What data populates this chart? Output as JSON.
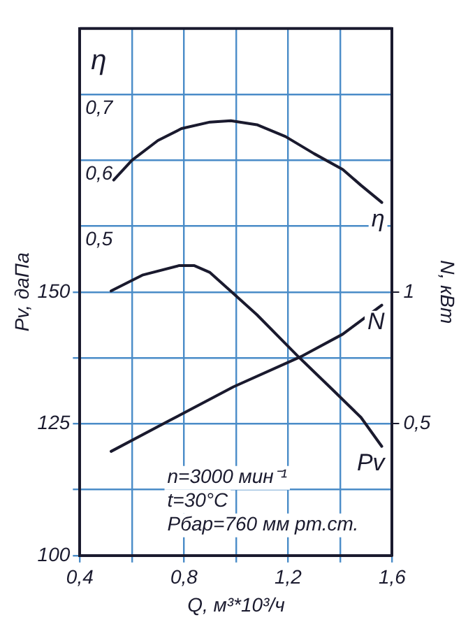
{
  "chart_data": {
    "type": "line",
    "xlabel": "Q, м³*10³/ч",
    "ylabel": "Pv, даПа",
    "y2label": "N, кВт",
    "y3label": "η",
    "xlim": [
      0.4,
      1.6
    ],
    "xticks": [
      {
        "value": 0.4,
        "label": "0,4"
      },
      {
        "value": 0.6,
        "label": null
      },
      {
        "value": 0.8,
        "label": "0,8"
      },
      {
        "value": 1.0,
        "label": null
      },
      {
        "value": 1.2,
        "label": "1,2"
      },
      {
        "value": 1.4,
        "label": null
      },
      {
        "value": 1.6,
        "label": "1,6"
      }
    ],
    "ylim": [
      100,
      200
    ],
    "yticks": [
      100,
      {
        "value": 112.5,
        "label": null
      },
      125,
      {
        "value": 137.5,
        "label": null
      },
      150
    ],
    "y2lim": [
      0,
      2
    ],
    "y2ticks": [
      {
        "value": 0.5,
        "label": "0,5"
      },
      1
    ],
    "y3lim": [
      0,
      0.8
    ],
    "y3ticks": [
      {
        "value": 0.5,
        "label": "0,5"
      },
      {
        "value": 0.6,
        "label": "0,6"
      },
      {
        "value": 0.7,
        "label": "0,7"
      }
    ],
    "grid": true,
    "legend": false,
    "marker": "none",
    "line_style": "solid",
    "series": [
      {
        "name": "η",
        "color": "#1a1a2e",
        "axis": "y3",
        "x": [
          0.53,
          0.6,
          0.7,
          0.79,
          0.9,
          0.98,
          1.08,
          1.19,
          1.3,
          1.41,
          1.48,
          1.56
        ],
        "values": [
          0.57,
          0.6,
          0.63,
          0.648,
          0.658,
          0.66,
          0.654,
          0.636,
          0.61,
          0.586,
          0.562,
          0.536
        ]
      },
      {
        "name": "Pv",
        "color": "#1a1a2e",
        "axis": "y",
        "x": [
          0.52,
          0.64,
          0.78,
          0.84,
          0.9,
          0.99,
          1.08,
          1.24,
          1.37,
          1.48,
          1.56
        ],
        "values": [
          150.2,
          153.2,
          155,
          155,
          153.7,
          149.7,
          145.7,
          137.7,
          131.5,
          126.2,
          120.7
        ]
      },
      {
        "name": "N",
        "color": "#1a1a2e",
        "axis": "y2",
        "x": [
          0.52,
          0.74,
          0.99,
          1.25,
          1.41,
          1.56
        ],
        "values": [
          0.395,
          0.51,
          0.64,
          0.755,
          0.84,
          0.95
        ]
      }
    ],
    "annotations": [
      "n=3000 мин⁻¹",
      "t=30°C",
      "Pбар=760 мм рт.ст."
    ]
  }
}
